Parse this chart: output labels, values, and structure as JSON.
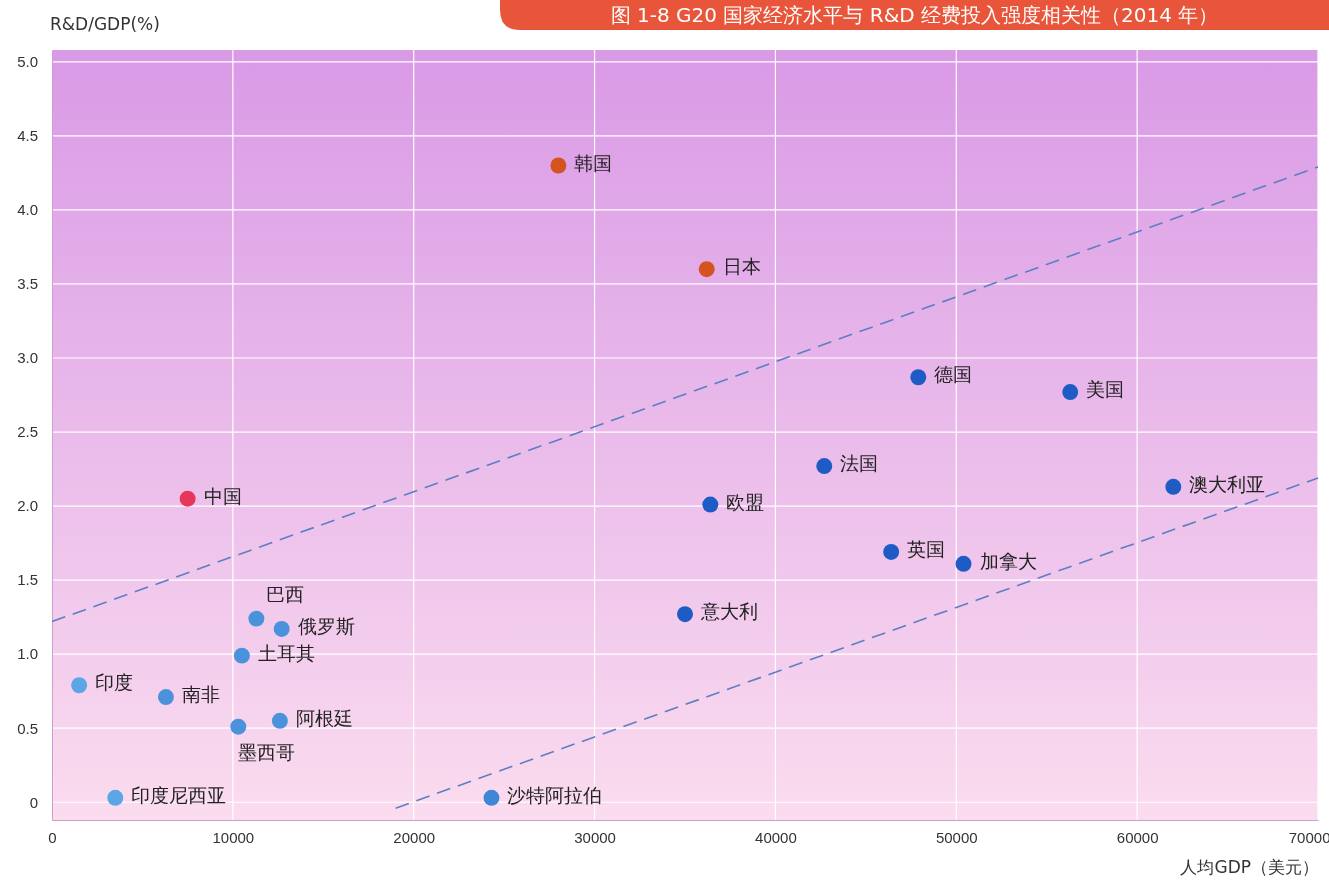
{
  "chart_data": {
    "type": "scatter",
    "title": "图 1-8  G20 国家经济水平与 R&D 经费投入强度相关性（2014 年）",
    "xlabel": "人均GDP（美元）",
    "ylabel": "R&D/GDP(%)",
    "xlim": [
      0,
      70000
    ],
    "xticks": [
      0,
      10000,
      20000,
      30000,
      40000,
      50000,
      60000,
      70000
    ],
    "ylim": [
      -0.12,
      5.08
    ],
    "yticks": [
      0,
      0.5,
      {
        "value": 1,
        "label": "1.0"
      },
      1.5,
      {
        "value": 2,
        "label": "2.0"
      },
      2.5,
      {
        "value": 3,
        "label": "3.0"
      },
      3.5,
      {
        "value": 4,
        "label": "4.0"
      },
      4.5,
      {
        "value": 5,
        "label": "5.0"
      }
    ],
    "grid": true,
    "marker": "circle",
    "series": [
      {
        "name": "韩国",
        "color": "#d4531f",
        "x": [
          28000
        ],
        "values": [
          4.3
        ]
      },
      {
        "name": "日本",
        "color": "#d4531f",
        "x": [
          36200
        ],
        "values": [
          3.6
        ]
      },
      {
        "name": "中国",
        "color": "#e8365a",
        "x": [
          7500
        ],
        "values": [
          2.05
        ]
      },
      {
        "name": "德国",
        "color": "#1f5bc4",
        "x": [
          47900
        ],
        "values": [
          2.87
        ]
      },
      {
        "name": "美国",
        "color": "#1f5bc4",
        "x": [
          56300
        ],
        "values": [
          2.77
        ]
      },
      {
        "name": "法国",
        "color": "#1f5bc4",
        "x": [
          42700
        ],
        "values": [
          2.27
        ]
      },
      {
        "name": "欧盟",
        "color": "#1f5bc4",
        "x": [
          36400
        ],
        "values": [
          2.01
        ]
      },
      {
        "name": "澳大利亚",
        "color": "#1f5bc4",
        "x": [
          62000
        ],
        "values": [
          2.13
        ]
      },
      {
        "name": "英国",
        "color": "#1f5bc4",
        "x": [
          46400
        ],
        "values": [
          1.69
        ]
      },
      {
        "name": "加拿大",
        "color": "#1f5bc4",
        "x": [
          50400
        ],
        "values": [
          1.61
        ]
      },
      {
        "name": "意大利",
        "color": "#1f5bc4",
        "x": [
          35000
        ],
        "values": [
          1.27
        ]
      },
      {
        "name": "巴西",
        "color": "#4a93dc",
        "x": [
          11300
        ],
        "values": [
          1.24
        ]
      },
      {
        "name": "俄罗斯",
        "color": "#4a93dc",
        "x": [
          12700
        ],
        "values": [
          1.17
        ]
      },
      {
        "name": "土耳其",
        "color": "#4a93dc",
        "x": [
          10500
        ],
        "values": [
          0.99
        ]
      },
      {
        "name": "印度",
        "color": "#5aa6e6",
        "x": [
          1500
        ],
        "values": [
          0.79
        ]
      },
      {
        "name": "南非",
        "color": "#4a93dc",
        "x": [
          6300
        ],
        "values": [
          0.71
        ]
      },
      {
        "name": "墨西哥",
        "color": "#4a93dc",
        "x": [
          10300
        ],
        "values": [
          0.51
        ]
      },
      {
        "name": "阿根廷",
        "color": "#4a93dc",
        "x": [
          12600
        ],
        "values": [
          0.55
        ]
      },
      {
        "name": "印度尼西亚",
        "color": "#5aa6e6",
        "x": [
          3500
        ],
        "values": [
          0.03
        ]
      },
      {
        "name": "沙特阿拉伯",
        "color": "#3f86d6",
        "x": [
          24300
        ],
        "values": [
          0.03
        ]
      },
      {
        "type": "line",
        "color": "#5b7fc2",
        "line_style": "dashed",
        "marker": "none",
        "x": [
          0,
          70000
        ],
        "values": [
          1.22,
          4.29
        ]
      },
      {
        "type": "line",
        "color": "#5b7fc2",
        "line_style": "dashed",
        "marker": "none",
        "x": [
          19000,
          70000
        ],
        "values": [
          -0.04,
          2.19
        ]
      }
    ]
  }
}
